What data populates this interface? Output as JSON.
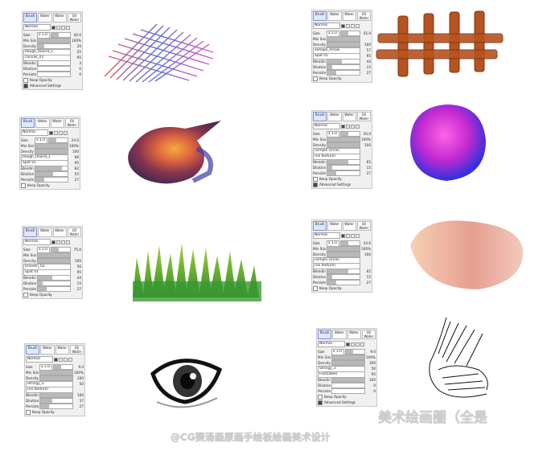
{
  "panels": [
    {
      "tabs": [
        "Brush",
        "Water",
        "Water",
        "Oil Water"
      ],
      "mode": "Normal",
      "size_prefix": "x 1.0",
      "size": "40.0",
      "min_size": "100%",
      "density": "20",
      "tex1": "Rough_Round_1",
      "tex1_val": "55",
      "tex2": "canvas_01",
      "tex2_val": "95",
      "blending": "3",
      "dilution": "0",
      "persistence": "0",
      "keep": "Keep Opacity",
      "adv": "Advanced Settings"
    },
    {
      "tabs": [
        "Brush",
        "Water",
        "Water",
        "Oil Water"
      ],
      "mode": "Normal",
      "size_prefix": "x 1.0",
      "size": "24.0",
      "min_size": "100%",
      "density": "100",
      "tex1": "Rough_Round_1",
      "tex1_val": "68",
      "tex2": "Spot 01",
      "tex2_val": "95",
      "blending": "82",
      "dilution": "55",
      "persistence": "27",
      "keep": "Keep Opacity"
    },
    {
      "tabs": [
        "Brush",
        "Water",
        "Water",
        "Oil Water"
      ],
      "mode": "Normal",
      "size_prefix": "x 1.0",
      "size": "75.0",
      "min_size": "",
      "density": "100",
      "tex1": "Uneven_02",
      "tex1_val": "56",
      "tex2": "Spot 01",
      "tex2_val": "95",
      "blending": "44",
      "dilution": "15",
      "persistence": "27",
      "keep": "Keep Opacity"
    },
    {
      "tabs": [
        "Brush",
        "Water",
        "Water",
        "Oil Water"
      ],
      "mode": "Normal",
      "size_prefix": "x 1.0",
      "size": "9.0",
      "min_size": "100%",
      "density": "100",
      "tex1": "Stringy_S",
      "tex1_val": "50",
      "tex2": "(no texture)",
      "tex2_val": "",
      "blending": "100",
      "dilution": "37",
      "persistence": "27",
      "keep": "Keep Opacity"
    },
    {
      "tabs": [
        "Brush",
        "Water",
        "Water",
        "Oil Water"
      ],
      "mode": "Normal",
      "size_prefix": "x 1.0",
      "size": "55.9",
      "min_size": "",
      "density": "100",
      "tex1": "xShape_Arrow",
      "tex1_val": "57",
      "tex2": "Spot 01",
      "tex2_val": "95",
      "blending": "44",
      "dilution": "15",
      "persistence": "27",
      "keep": "Keep Opacity"
    },
    {
      "tabs": [
        "Brush",
        "Water",
        "Water",
        "Oil Water"
      ],
      "mode": "Normal",
      "size_prefix": "x 1.0",
      "size": "50.0",
      "min_size": "100%",
      "density": "100",
      "tex1": "(simple circle)",
      "tex1_val": "",
      "tex2": "(no texture)",
      "tex2_val": "",
      "blending": "65",
      "dilution": "15",
      "persistence": "27",
      "keep": "Keep Opacity",
      "adv": "Advanced Settings"
    },
    {
      "tabs": [
        "Brush",
        "Water",
        "Water",
        "Oil Water"
      ],
      "mode": "Normal",
      "size_prefix": "x 1.0",
      "size": "24.0",
      "min_size": "100%",
      "density": "100",
      "tex1": "(simple circle)",
      "tex1_val": "",
      "tex2": "(no texture)",
      "tex2_val": "",
      "blending": "65",
      "dilution": "15",
      "persistence": "27",
      "keep": "Keep Opacity"
    },
    {
      "tabs": [
        "Brush",
        "Water",
        "Water",
        "Oil Water"
      ],
      "mode": "Normal",
      "size_prefix": "x 1.0",
      "size": "9.0",
      "min_size": "100%",
      "density": "100",
      "tex1": "Stringy_3",
      "tex1_val": "50",
      "tex2": "Fuzz(able)",
      "tex2_val": "95",
      "blending": "100",
      "dilution": "0",
      "persistence": "0",
      "keep": "Keep Opacity",
      "adv": "Advanced Settings"
    }
  ],
  "labels": {
    "size": "Size",
    "min_size": "Min Size",
    "density": "Density",
    "blending": "Blending",
    "dilution": "Dilution",
    "persistence": "Persistence"
  },
  "watermarks": {
    "main": "美术绘画圈（全是",
    "sub": "@CG赛涌画原画手绘板绘画美术设计"
  },
  "colors": {
    "accent": "#7a8fd6",
    "panel_bg": "#f0f0f0"
  }
}
